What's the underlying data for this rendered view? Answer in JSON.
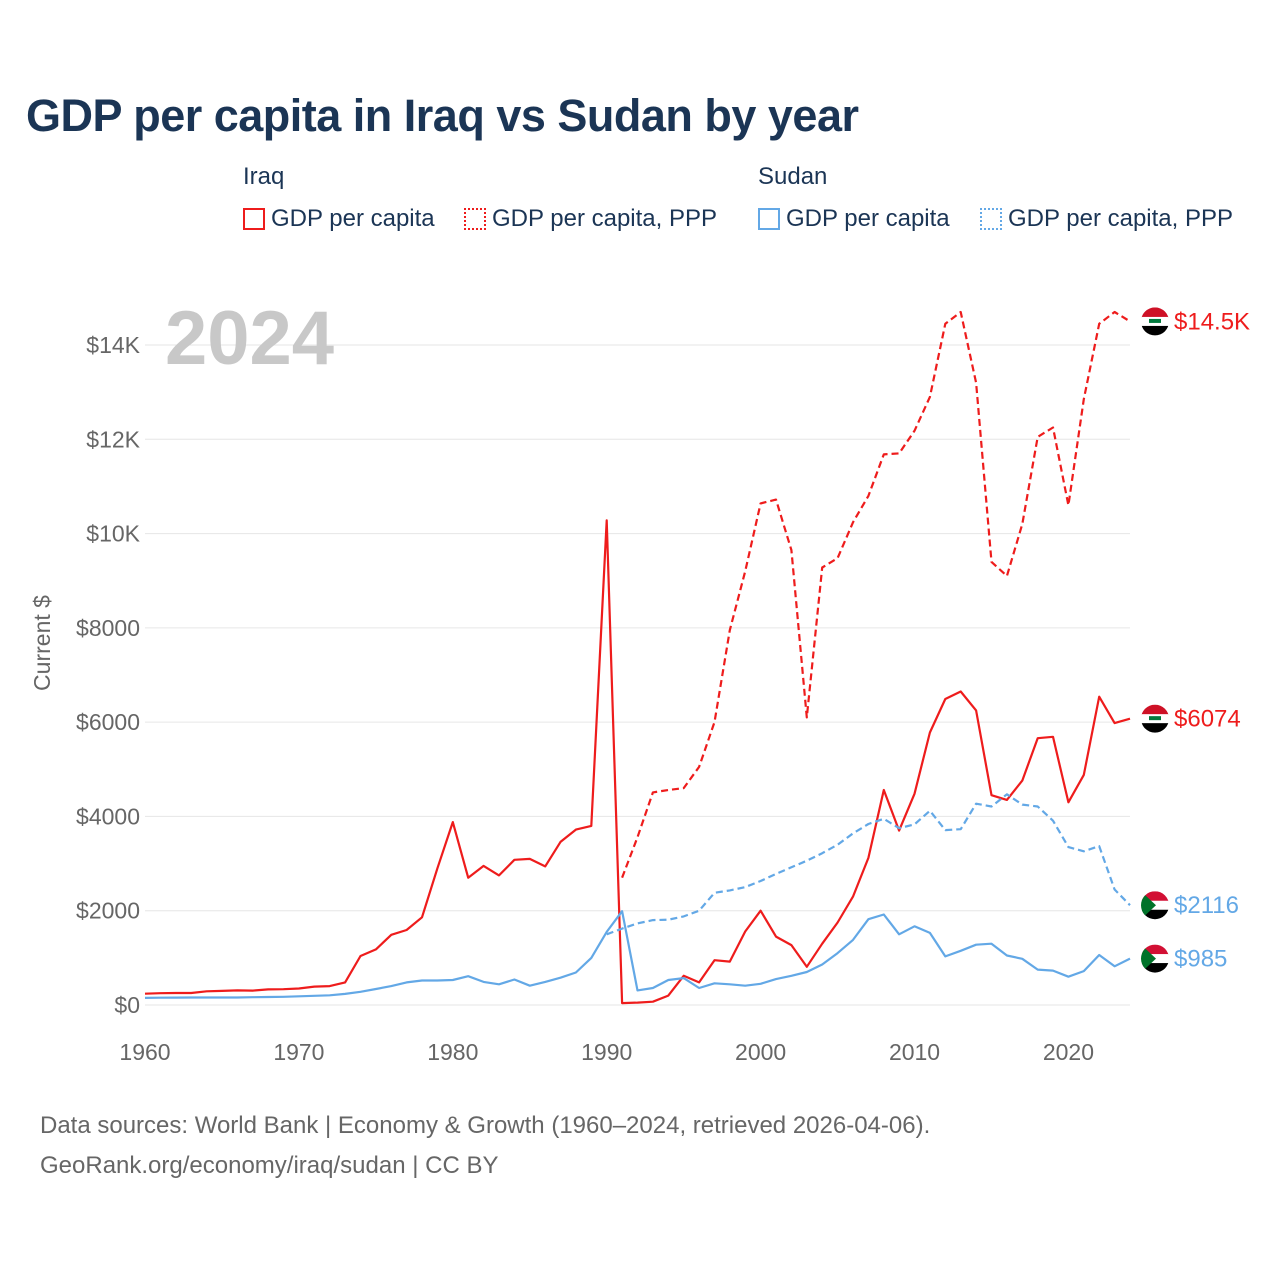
{
  "title": "GDP per capita in Iraq vs Sudan by year",
  "legend": {
    "groups": [
      {
        "name": "Iraq",
        "items": [
          "GDP per capita",
          "GDP per capita, PPP"
        ]
      },
      {
        "name": "Sudan",
        "items": [
          "GDP per capita",
          "GDP per capita, PPP"
        ]
      }
    ]
  },
  "source": {
    "line1": "Data sources: World Bank | Economy & Growth (1960–2024, retrieved 2026-04-06).",
    "line2": "GeoRank.org/economy/iraq/sudan | CC BY"
  },
  "colors": {
    "iraq": "#ee1c1c",
    "sudan": "#63a8e6",
    "grid": "#e6e6e6",
    "title": "#1b3555"
  },
  "chart_data": {
    "type": "line",
    "title": "GDP per capita in Iraq vs Sudan by year",
    "xlabel": "",
    "ylabel": "Current $",
    "xlim": [
      1960,
      2024
    ],
    "ylim": [
      0,
      15000
    ],
    "x_ticks": [
      1960,
      1970,
      1980,
      1990,
      2000,
      2010,
      2020
    ],
    "y_ticks": [
      {
        "value": 0,
        "label": "$0"
      },
      {
        "value": 2000,
        "label": "$2000"
      },
      {
        "value": 4000,
        "label": "$4000"
      },
      {
        "value": 6000,
        "label": "$6000"
      },
      {
        "value": 8000,
        "label": "$8000"
      },
      {
        "value": 10000,
        "label": "$10K"
      },
      {
        "value": 12000,
        "label": "$12K"
      },
      {
        "value": 14000,
        "label": "$14K"
      }
    ],
    "year_display": "2024",
    "grid": true,
    "series": [
      {
        "name": "Iraq GDP per capita",
        "country": "iraq",
        "style": "solid",
        "end_label": "$6074",
        "x": [
          1960,
          1961,
          1962,
          1963,
          1964,
          1965,
          1966,
          1967,
          1968,
          1969,
          1970,
          1971,
          1972,
          1973,
          1974,
          1975,
          1976,
          1977,
          1978,
          1979,
          1980,
          1981,
          1982,
          1983,
          1984,
          1985,
          1986,
          1987,
          1988,
          1989,
          1990,
          1991,
          1992,
          1993,
          1994,
          1995,
          1996,
          1997,
          1998,
          1999,
          2000,
          2001,
          2002,
          2003,
          2004,
          2005,
          2006,
          2007,
          2008,
          2009,
          2010,
          2011,
          2012,
          2013,
          2014,
          2015,
          2016,
          2017,
          2018,
          2019,
          2020,
          2021,
          2022,
          2023,
          2024
        ],
        "values": [
          240,
          250,
          255,
          255,
          290,
          300,
          310,
          305,
          330,
          335,
          350,
          390,
          400,
          480,
          1040,
          1180,
          1490,
          1590,
          1860,
          2900,
          3880,
          2700,
          2950,
          2750,
          3080,
          3100,
          2940,
          3460,
          3720,
          3800,
          10280,
          40,
          50,
          70,
          200,
          620,
          480,
          950,
          920,
          1560,
          2000,
          1450,
          1270,
          810,
          1300,
          1750,
          2300,
          3120,
          4560,
          3700,
          4480,
          5780,
          6490,
          6650,
          6250,
          4450,
          4350,
          4760,
          5660,
          5690,
          4300,
          4880,
          6540,
          5980,
          6074
        ]
      },
      {
        "name": "Iraq GDP per capita, PPP",
        "country": "iraq",
        "style": "dashed",
        "end_label": "$14.5K",
        "x": [
          1991,
          1992,
          1993,
          1994,
          1995,
          1996,
          1997,
          1998,
          1999,
          2000,
          2001,
          2002,
          2003,
          2004,
          2005,
          2006,
          2007,
          2008,
          2009,
          2010,
          2011,
          2012,
          2013,
          2014,
          2015,
          2016,
          2017,
          2018,
          2019,
          2020,
          2021,
          2022,
          2023,
          2024
        ],
        "values": [
          2700,
          3560,
          4510,
          4560,
          4600,
          5050,
          6000,
          7950,
          9200,
          10640,
          10720,
          9650,
          6100,
          9280,
          9480,
          10240,
          10800,
          11680,
          11700,
          12180,
          12900,
          14450,
          14700,
          13200,
          9400,
          9100,
          10200,
          12050,
          12250,
          10600,
          12850,
          14450,
          14700,
          14500
        ]
      },
      {
        "name": "Sudan GDP per capita",
        "country": "sudan",
        "style": "solid",
        "end_label": "$985",
        "x": [
          1960,
          1961,
          1962,
          1963,
          1964,
          1965,
          1966,
          1967,
          1968,
          1969,
          1970,
          1971,
          1972,
          1973,
          1974,
          1975,
          1976,
          1977,
          1978,
          1979,
          1980,
          1981,
          1982,
          1983,
          1984,
          1985,
          1986,
          1987,
          1988,
          1989,
          1990,
          1991,
          1992,
          1993,
          1994,
          1995,
          1996,
          1997,
          1998,
          1999,
          2000,
          2001,
          2002,
          2003,
          2004,
          2005,
          2006,
          2007,
          2008,
          2009,
          2010,
          2011,
          2012,
          2013,
          2014,
          2015,
          2016,
          2017,
          2018,
          2019,
          2020,
          2021,
          2022,
          2023,
          2024
        ],
        "values": [
          150,
          155,
          158,
          160,
          160,
          160,
          160,
          165,
          170,
          175,
          185,
          195,
          205,
          235,
          280,
          340,
          400,
          480,
          520,
          520,
          530,
          610,
          490,
          440,
          540,
          410,
          490,
          580,
          690,
          1000,
          1550,
          1990,
          310,
          360,
          530,
          570,
          360,
          460,
          440,
          410,
          450,
          550,
          620,
          700,
          860,
          1100,
          1380,
          1820,
          1920,
          1500,
          1670,
          1530,
          1030,
          1150,
          1280,
          1300,
          1050,
          980,
          750,
          730,
          600,
          720,
          1060,
          820,
          985
        ]
      },
      {
        "name": "Sudan GDP per capita, PPP",
        "country": "sudan",
        "style": "dashed",
        "end_label": "$2116",
        "x": [
          1990,
          1991,
          1992,
          1993,
          1994,
          1995,
          1996,
          1997,
          1998,
          1999,
          2000,
          2001,
          2002,
          2003,
          2004,
          2005,
          2006,
          2007,
          2008,
          2009,
          2010,
          2011,
          2012,
          2013,
          2014,
          2015,
          2016,
          2017,
          2018,
          2019,
          2020,
          2021,
          2022,
          2023,
          2024
        ],
        "values": [
          1500,
          1620,
          1730,
          1800,
          1810,
          1880,
          2000,
          2380,
          2430,
          2500,
          2630,
          2780,
          2920,
          3060,
          3220,
          3400,
          3640,
          3840,
          3950,
          3750,
          3830,
          4120,
          3710,
          3730,
          4270,
          4210,
          4470,
          4250,
          4210,
          3910,
          3350,
          3260,
          3370,
          2450,
          2116
        ]
      }
    ]
  }
}
